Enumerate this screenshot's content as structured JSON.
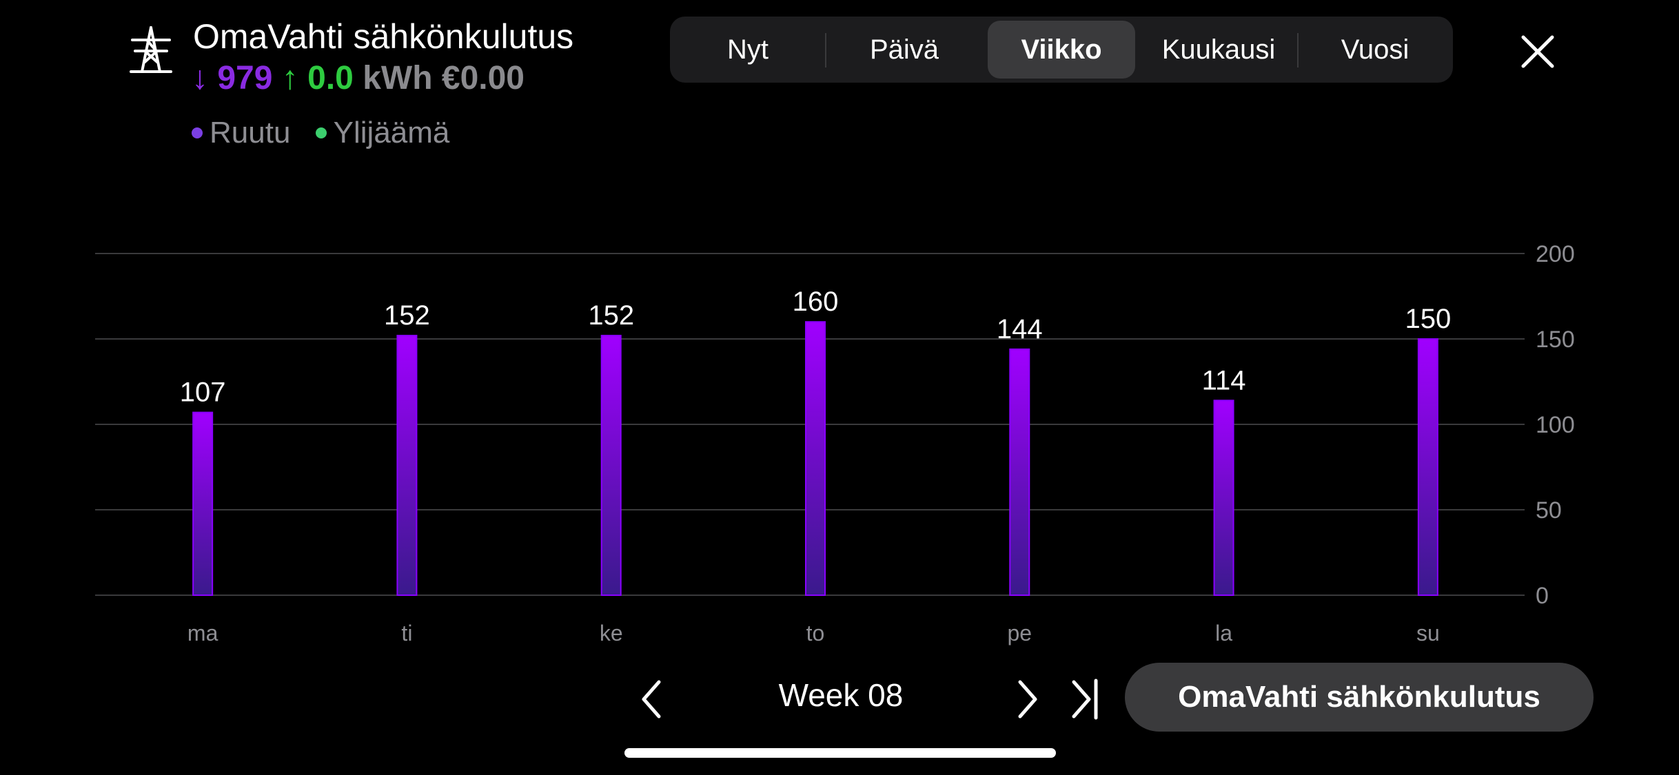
{
  "header": {
    "icon": "power-pylon-icon",
    "title": "OmaVahti sähkönkulutus",
    "grid_arrow": "↓",
    "grid_value": "979",
    "surplus_arrow": "↑",
    "surplus_value": "0.0",
    "unit": "kWh",
    "cost": "€0.00",
    "legend": [
      {
        "label": "Ruutu",
        "color": "#7b3fe4"
      },
      {
        "label": "Ylijäämä",
        "color": "#3ccf6e"
      }
    ]
  },
  "tabs": [
    {
      "label": "Nyt",
      "active": false
    },
    {
      "label": "Päivä",
      "active": false
    },
    {
      "label": "Viikko",
      "active": true
    },
    {
      "label": "Kuukausi",
      "active": false
    },
    {
      "label": "Vuosi",
      "active": false
    }
  ],
  "close_icon": "close-icon",
  "chart_data": {
    "type": "bar",
    "categories": [
      "ma",
      "ti",
      "ke",
      "to",
      "pe",
      "la",
      "su"
    ],
    "series": [
      {
        "name": "Ruutu",
        "values": [
          107,
          152,
          152,
          160,
          144,
          114,
          150
        ]
      }
    ],
    "ylim": [
      0,
      200
    ],
    "yticks": [
      0,
      50,
      100,
      150,
      200
    ],
    "y_axis_side": "right",
    "grid": true,
    "bar_color_top": "#a000ff",
    "bar_color_bottom": "#3a1a8c"
  },
  "footer": {
    "prev_icon": "chevron-left-icon",
    "week_label": "Week 08",
    "next_icon": "chevron-right-icon",
    "last_icon": "skip-to-end-icon",
    "entity_button": "OmaVahti sähkönkulutus"
  }
}
